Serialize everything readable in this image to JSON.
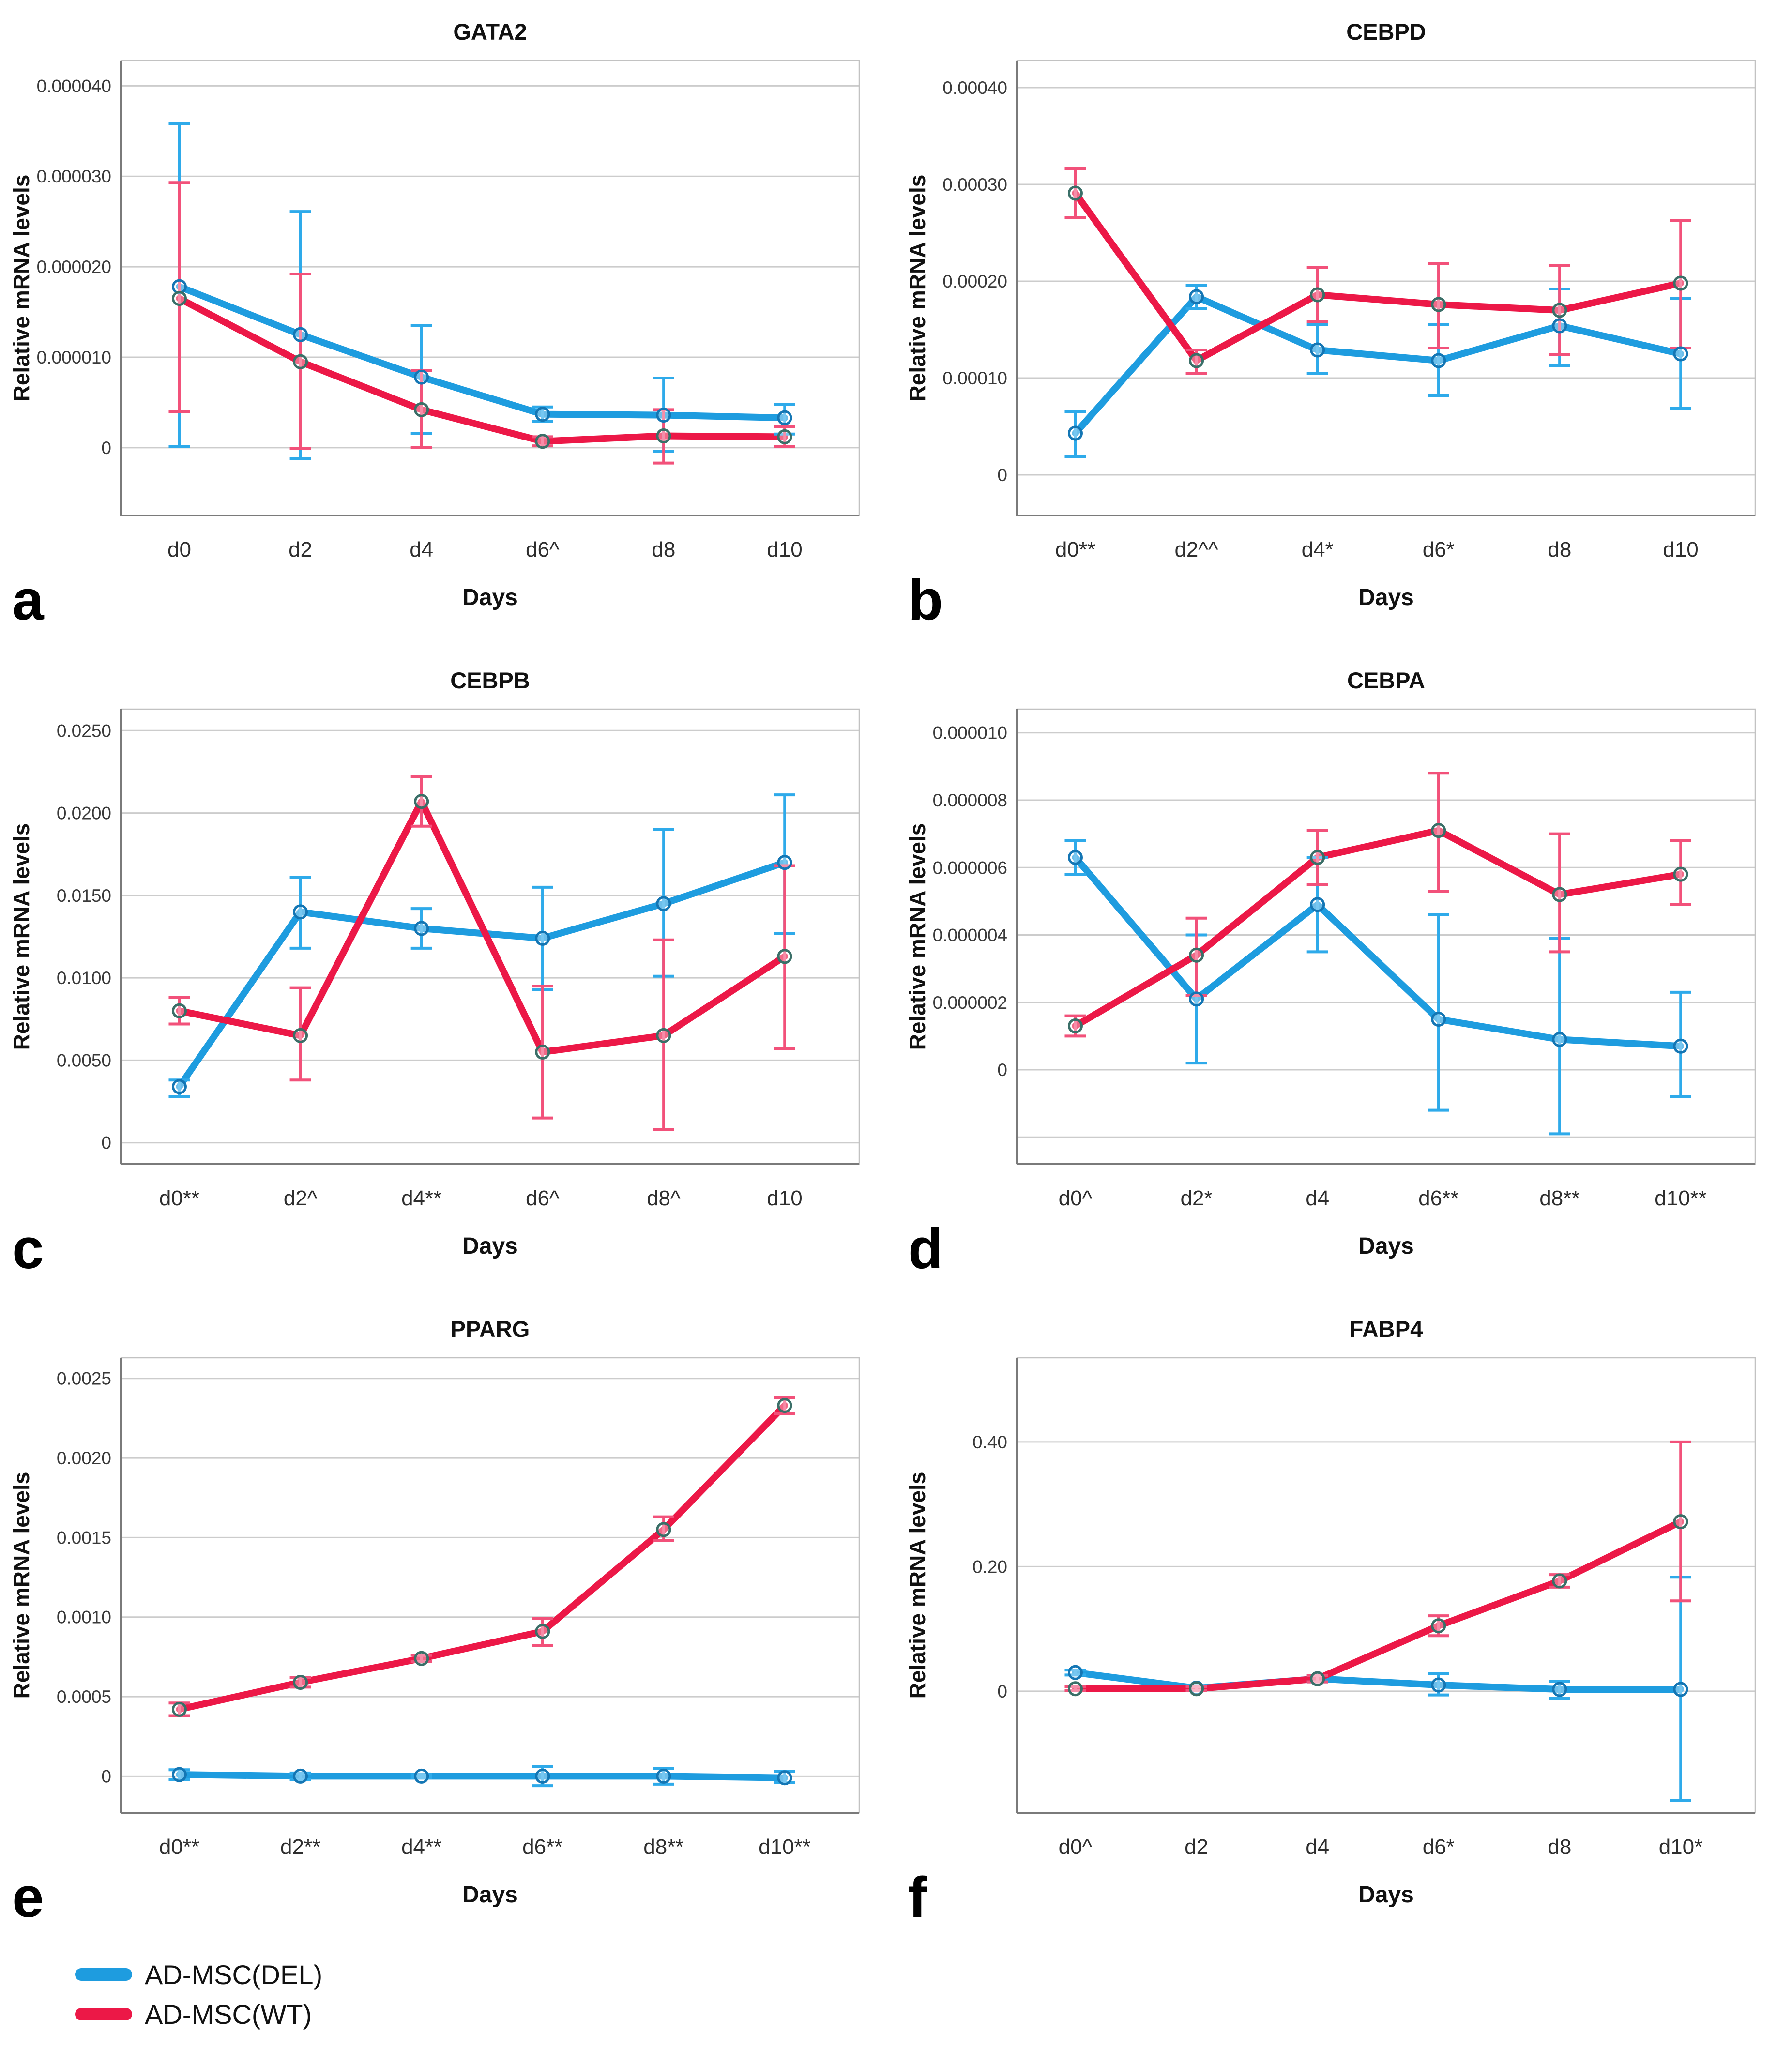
{
  "figure": {
    "y_axis_title": "Relative mRNA levels",
    "x_axis_title": "Days",
    "panel_letters": [
      "a",
      "b",
      "c",
      "d",
      "e",
      "f"
    ]
  },
  "legend": {
    "items": [
      {
        "label": "AD-MSC(DEL)",
        "color": "#1E9CDF"
      },
      {
        "label": "AD-MSC(WT)",
        "color": "#EC1847"
      }
    ]
  },
  "colors": {
    "del_line": "#1E9CDF",
    "del_errorbar": "#2EAAEA",
    "del_marker_ring": "#1476B4",
    "wt_line": "#EC1847",
    "wt_errorbar": "#F2517A",
    "wt_marker_ring": "#3A6F68",
    "gridline": "#CCCCCC",
    "axis_line": "#7A7A7A",
    "frame_line": "#C2C2C2",
    "tick_text": "#3A3A3A",
    "label_text": "#111111"
  },
  "series_styles": {
    "AD-MSC(DEL)": {
      "line": "#1E9CDF",
      "errorbar": "#2EAAEA",
      "marker_ring": "#1476B4"
    },
    "AD-MSC(WT)": {
      "line": "#EC1847",
      "errorbar": "#F2517A",
      "marker_ring": "#3A6F68"
    }
  },
  "chart_data": [
    {
      "type": "line",
      "panel": "a",
      "title": "GATA2",
      "xlabel": "Days",
      "ylabel": "Relative mRNA levels",
      "grid": true,
      "legend_position": "figure-bottom",
      "categories": [
        "d0",
        "d2",
        "d4",
        "d6^",
        "d8",
        "d10"
      ],
      "ylim": [
        -7.5e-06,
        4.28e-05
      ],
      "yticks": [
        {
          "v": 0.0,
          "label": "0"
        },
        {
          "v": 1e-05,
          "label": "0.000010"
        },
        {
          "v": 2e-05,
          "label": "0.000020"
        },
        {
          "v": 3e-05,
          "label": "0.000030"
        },
        {
          "v": 4e-05,
          "label": "0.000040"
        }
      ],
      "series": [
        {
          "name": "AD-MSC(DEL)",
          "values": [
            1.78e-05,
            1.25e-05,
            7.8e-06,
            3.7e-06,
            3.6e-06,
            3.3e-06
          ],
          "err_lo": [
            1e-07,
            -1.2e-06,
            1.6e-06,
            2.9e-06,
            -4e-07,
            1.5e-06
          ],
          "err_hi": [
            3.58e-05,
            2.61e-05,
            1.35e-05,
            4.5e-06,
            7.7e-06,
            4.8e-06
          ]
        },
        {
          "name": "AD-MSC(WT)",
          "values": [
            1.65e-05,
            9.5e-06,
            4.2e-06,
            7e-07,
            1.3e-06,
            1.2e-06
          ],
          "err_lo": [
            4e-06,
            -1e-07,
            0.0,
            2e-07,
            -1.7e-06,
            1e-07
          ],
          "err_hi": [
            2.93e-05,
            1.92e-05,
            8.5e-06,
            1.2e-06,
            4.2e-06,
            2.3e-06
          ]
        }
      ]
    },
    {
      "type": "line",
      "panel": "b",
      "title": "CEBPD",
      "xlabel": "Days",
      "ylabel": "Relative mRNA levels",
      "grid": true,
      "legend_position": "figure-bottom",
      "categories": [
        "d0**",
        "d2^^",
        "d4*",
        "d6*",
        "d8",
        "d10"
      ],
      "ylim": [
        -4.2e-05,
        0.000428
      ],
      "yticks": [
        {
          "v": 0.0,
          "label": "0"
        },
        {
          "v": 0.0001,
          "label": "0.00010"
        },
        {
          "v": 0.0002,
          "label": "0.00020"
        },
        {
          "v": 0.0003,
          "label": "0.00030"
        },
        {
          "v": 0.0004,
          "label": "0.00040"
        }
      ],
      "series": [
        {
          "name": "AD-MSC(DEL)",
          "values": [
            4.3e-05,
            0.000184,
            0.000129,
            0.000118,
            0.000154,
            0.000125
          ],
          "err_lo": [
            1.9e-05,
            0.000172,
            0.000105,
            8.2e-05,
            0.000113,
            6.9e-05
          ],
          "err_hi": [
            6.5e-05,
            0.000196,
            0.000155,
            0.000155,
            0.000192,
            0.000182
          ]
        },
        {
          "name": "AD-MSC(WT)",
          "values": [
            0.000291,
            0.000118,
            0.000186,
            0.000176,
            0.00017,
            0.000198
          ],
          "err_lo": [
            0.000266,
            0.000105,
            0.000158,
            0.000131,
            0.000124,
            0.000131
          ],
          "err_hi": [
            0.000316,
            0.000129,
            0.000214,
            0.000218,
            0.000216,
            0.000263
          ]
        }
      ]
    },
    {
      "type": "line",
      "panel": "c",
      "title": "CEBPB",
      "xlabel": "Days",
      "ylabel": "Relative mRNA levels",
      "grid": true,
      "legend_position": "figure-bottom",
      "categories": [
        "d0**",
        "d2^",
        "d4**",
        "d6^",
        "d8^",
        "d10"
      ],
      "ylim": [
        -0.0013,
        0.0263
      ],
      "yticks": [
        {
          "v": 0.0,
          "label": "0"
        },
        {
          "v": 0.005,
          "label": "0.0050"
        },
        {
          "v": 0.01,
          "label": "0.0100"
        },
        {
          "v": 0.015,
          "label": "0.0150"
        },
        {
          "v": 0.02,
          "label": "0.0200"
        },
        {
          "v": 0.025,
          "label": "0.0250"
        }
      ],
      "series": [
        {
          "name": "AD-MSC(DEL)",
          "values": [
            0.0034,
            0.014,
            0.013,
            0.0124,
            0.0145,
            0.017
          ],
          "err_lo": [
            0.0028,
            0.0118,
            0.0118,
            0.0093,
            0.0101,
            0.0127
          ],
          "err_hi": [
            0.0038,
            0.0161,
            0.0142,
            0.0155,
            0.019,
            0.0211
          ]
        },
        {
          "name": "AD-MSC(WT)",
          "values": [
            0.008,
            0.0065,
            0.0207,
            0.0055,
            0.0065,
            0.0113
          ],
          "err_lo": [
            0.0072,
            0.0038,
            0.0192,
            0.0015,
            0.0008,
            0.0057
          ],
          "err_hi": [
            0.0088,
            0.0094,
            0.0222,
            0.0095,
            0.0123,
            0.0168
          ]
        }
      ]
    },
    {
      "type": "line",
      "panel": "d",
      "title": "CEBPA",
      "xlabel": "Days",
      "ylabel": "Relative mRNA levels",
      "grid": true,
      "legend_position": "figure-bottom",
      "categories": [
        "d0^",
        "d2*",
        "d4",
        "d6**",
        "d8**",
        "d10**"
      ],
      "ylim": [
        -2.8e-06,
        1.07e-05
      ],
      "yticks": [
        {
          "v": -2e-06,
          "label": ""
        },
        {
          "v": 0.0,
          "label": "0"
        },
        {
          "v": 2e-06,
          "label": "0.000002"
        },
        {
          "v": 4e-06,
          "label": "0.000004"
        },
        {
          "v": 6e-06,
          "label": "0.000006"
        },
        {
          "v": 8e-06,
          "label": "0.000008"
        },
        {
          "v": 1e-05,
          "label": "0.000010"
        }
      ],
      "series": [
        {
          "name": "AD-MSC(DEL)",
          "values": [
            6.3e-06,
            2.1e-06,
            4.9e-06,
            1.5e-06,
            9e-07,
            7e-07
          ],
          "err_lo": [
            5.8e-06,
            2e-07,
            3.5e-06,
            -1.2e-06,
            -1.9e-06,
            -8e-07
          ],
          "err_hi": [
            6.8e-06,
            4e-06,
            6.3e-06,
            4.6e-06,
            3.9e-06,
            2.3e-06
          ]
        },
        {
          "name": "AD-MSC(WT)",
          "values": [
            1.3e-06,
            3.4e-06,
            6.3e-06,
            7.1e-06,
            5.2e-06,
            5.8e-06
          ],
          "err_lo": [
            1e-06,
            2.2e-06,
            5.5e-06,
            5.3e-06,
            3.5e-06,
            4.9e-06
          ],
          "err_hi": [
            1.6e-06,
            4.5e-06,
            7.1e-06,
            8.8e-06,
            7e-06,
            6.8e-06
          ]
        }
      ]
    },
    {
      "type": "line",
      "panel": "e",
      "title": "PPARG",
      "xlabel": "Days",
      "ylabel": "Relative mRNA levels",
      "grid": true,
      "legend_position": "figure-bottom",
      "categories": [
        "d0**",
        "d2**",
        "d4**",
        "d6**",
        "d8**",
        "d10**"
      ],
      "ylim": [
        -0.00023,
        0.00263
      ],
      "yticks": [
        {
          "v": 0.0,
          "label": "0"
        },
        {
          "v": 0.0005,
          "label": "0.0005"
        },
        {
          "v": 0.001,
          "label": "0.0010"
        },
        {
          "v": 0.0015,
          "label": "0.0015"
        },
        {
          "v": 0.002,
          "label": "0.0020"
        },
        {
          "v": 0.0025,
          "label": "0.0025"
        }
      ],
      "series": [
        {
          "name": "AD-MSC(DEL)",
          "values": [
            1e-05,
            0.0,
            0.0,
            0.0,
            0.0,
            -1e-05
          ],
          "err_lo": [
            -2e-05,
            -2e-05,
            -1e-05,
            -6e-05,
            -5e-05,
            -4e-05
          ],
          "err_hi": [
            4e-05,
            2e-05,
            1e-05,
            6e-05,
            5e-05,
            3e-05
          ]
        },
        {
          "name": "AD-MSC(WT)",
          "values": [
            0.00042,
            0.00059,
            0.00074,
            0.00091,
            0.00155,
            0.00233
          ],
          "err_lo": [
            0.00038,
            0.00056,
            0.00072,
            0.00082,
            0.00148,
            0.00228
          ],
          "err_hi": [
            0.00046,
            0.00062,
            0.00076,
            0.00099,
            0.00163,
            0.00238
          ]
        }
      ]
    },
    {
      "type": "line",
      "panel": "f",
      "title": "FABP4",
      "xlabel": "Days",
      "ylabel": "Relative mRNA levels",
      "grid": true,
      "legend_position": "figure-bottom",
      "categories": [
        "d0^",
        "d2",
        "d4",
        "d6*",
        "d8",
        "d10*"
      ],
      "ylim": [
        -0.195,
        0.535
      ],
      "yticks": [
        {
          "v": 0.0,
          "label": "0"
        },
        {
          "v": 0.2,
          "label": "0.20"
        },
        {
          "v": 0.4,
          "label": "0.40"
        }
      ],
      "series": [
        {
          "name": "AD-MSC(DEL)",
          "values": [
            0.03,
            0.005,
            0.02,
            0.01,
            0.003,
            0.003
          ],
          "err_lo": [
            0.026,
            0.001,
            0.015,
            -0.006,
            -0.011,
            -0.175
          ],
          "err_hi": [
            0.034,
            0.009,
            0.025,
            0.028,
            0.016,
            0.183
          ]
        },
        {
          "name": "AD-MSC(WT)",
          "values": [
            0.004,
            0.004,
            0.02,
            0.105,
            0.177,
            0.272
          ],
          "err_lo": [
            0.001,
            0.001,
            0.015,
            0.089,
            0.167,
            0.145
          ],
          "err_hi": [
            0.007,
            0.007,
            0.025,
            0.121,
            0.187,
            0.4
          ]
        }
      ]
    }
  ]
}
